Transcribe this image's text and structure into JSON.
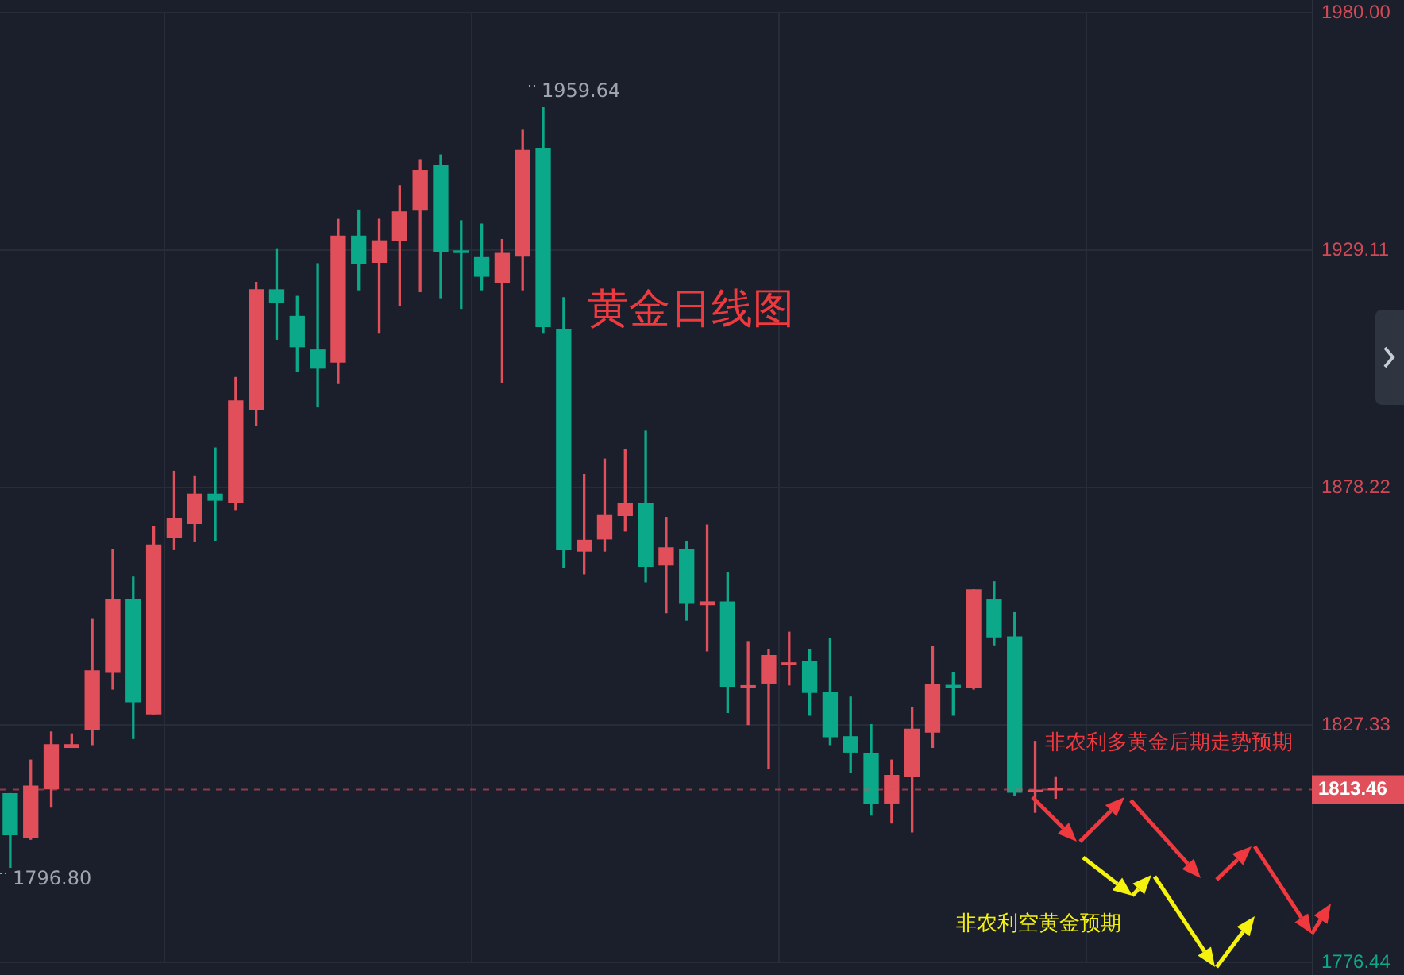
{
  "chart_data": {
    "type": "candlestick",
    "title": "黄金日线图",
    "categories": [
      null,
      null,
      null,
      null,
      null,
      null,
      null,
      null,
      null,
      null,
      null,
      null,
      null,
      null,
      null,
      null,
      null,
      null,
      null,
      null,
      null,
      null,
      null,
      null,
      null,
      null,
      null,
      null,
      null,
      null,
      null,
      null,
      null,
      null,
      null,
      null,
      null,
      null,
      null,
      null,
      null,
      null,
      null,
      null,
      null,
      null,
      null,
      null,
      null,
      null,
      null,
      null,
      null,
      null,
      null,
      null,
      null,
      null,
      null,
      null,
      null,
      null,
      null,
      null
    ],
    "ohlc": [
      [
        1812.6,
        1812.6,
        1796.8,
        1803.8
      ],
      [
        1803.2,
        1819.8,
        1802.8,
        1814.2
      ],
      [
        1813.6,
        1825.8,
        1809.7,
        1823.1
      ],
      [
        1822.5,
        1825.4,
        1822.5,
        1823.1
      ],
      [
        1826.4,
        1850.1,
        1823.1,
        1838.9
      ],
      [
        1838.6,
        1864.9,
        1835.0,
        1854.1
      ],
      [
        1854.1,
        1859.0,
        1824.4,
        1832.3
      ],
      [
        1829.7,
        1869.9,
        1829.7,
        1865.9
      ],
      [
        1867.6,
        1881.7,
        1864.9,
        1871.5
      ],
      [
        1870.5,
        1880.7,
        1866.6,
        1876.8
      ],
      [
        1876.8,
        1886.7,
        1866.9,
        1875.5
      ],
      [
        1875.1,
        1901.8,
        1873.5,
        1896.8
      ],
      [
        1894.9,
        1922.2,
        1891.6,
        1920.6
      ],
      [
        1920.6,
        1929.4,
        1910.0,
        1917.9
      ],
      [
        1914.9,
        1919.2,
        1903.1,
        1908.4
      ],
      [
        1907.7,
        1926.2,
        1895.5,
        1903.8
      ],
      [
        1905.1,
        1935.7,
        1900.5,
        1932.1
      ],
      [
        1932.1,
        1937.7,
        1920.6,
        1926.2
      ],
      [
        1926.5,
        1935.7,
        1911.3,
        1931.1
      ],
      [
        1931.1,
        1942.9,
        1917.3,
        1937.3
      ],
      [
        1937.7,
        1948.5,
        1920.2,
        1946.2
      ],
      [
        1947.2,
        1949.5,
        1918.9,
        1928.8
      ],
      [
        1928.8,
        1935.4,
        1916.6,
        1928.6
      ],
      [
        1927.5,
        1934.7,
        1920.6,
        1923.5
      ],
      [
        1922.2,
        1931.4,
        1900.8,
        1928.4
      ],
      [
        1927.8,
        1954.8,
        1920.6,
        1950.5
      ],
      [
        1950.8,
        1959.64,
        1911.3,
        1912.7
      ],
      [
        1912.0,
        1918.9,
        1861.0,
        1864.9
      ],
      [
        1864.6,
        1881.0,
        1859.7,
        1866.9
      ],
      [
        1867.2,
        1884.3,
        1864.6,
        1872.2
      ],
      [
        1872.2,
        1886.3,
        1868.9,
        1874.8
      ],
      [
        1874.8,
        1890.3,
        1858.0,
        1861.3
      ],
      [
        1861.6,
        1871.8,
        1851.4,
        1865.3
      ],
      [
        1864.9,
        1866.6,
        1849.8,
        1853.4
      ],
      [
        1853.1,
        1870.2,
        1843.2,
        1853.7
      ],
      [
        1853.7,
        1860.0,
        1830.0,
        1835.6
      ],
      [
        1835.4,
        1845.2,
        1827.4,
        1835.6
      ],
      [
        1836.3,
        1843.5,
        1817.9,
        1842.2
      ],
      [
        1840.3,
        1847.2,
        1835.9,
        1840.6
      ],
      [
        1840.9,
        1843.5,
        1829.4,
        1834.3
      ],
      [
        1834.3,
        1845.8,
        1823.1,
        1824.8
      ],
      [
        1824.8,
        1833.3,
        1817.2,
        1821.5
      ],
      [
        1821.1,
        1827.4,
        1808.0,
        1810.6
      ],
      [
        1810.6,
        1819.8,
        1806.3,
        1816.5
      ],
      [
        1816.2,
        1831.0,
        1804.4,
        1826.4
      ],
      [
        1825.8,
        1844.2,
        1822.5,
        1836.0
      ],
      [
        1835.8,
        1838.6,
        1829.4,
        1835.4
      ],
      [
        1835.3,
        1856.3,
        1835.0,
        1856.3
      ],
      [
        1854.1,
        1858.0,
        1844.5,
        1846.2
      ],
      [
        1846.2,
        1851.4,
        1812.3,
        1812.9
      ],
      [
        1813.0,
        1823.8,
        1808.6,
        1813.2
      ],
      [
        1813.4,
        1816.2,
        1811.6,
        1813.46
      ],
      null,
      null,
      null,
      null,
      null,
      null,
      null,
      null,
      null,
      null,
      null,
      null
    ],
    "colors": [
      "#0ca88a",
      "#e04f5a",
      "#e04f5a",
      "#e04f5a",
      "#e04f5a",
      "#e04f5a",
      "#0ca88a",
      "#e04f5a",
      "#e04f5a",
      "#e04f5a",
      "#0ca88a",
      "#e04f5a",
      "#e04f5a",
      "#0ca88a",
      "#0ca88a",
      "#0ca88a",
      "#e04f5a",
      "#0ca88a",
      "#e04f5a",
      "#e04f5a",
      "#e04f5a",
      "#0ca88a",
      "#0ca88a",
      "#0ca88a",
      "#e04f5a",
      "#e04f5a",
      "#0ca88a",
      "#0ca88a",
      "#e04f5a",
      "#e04f5a",
      "#e04f5a",
      "#0ca88a",
      "#e04f5a",
      "#0ca88a",
      "#e04f5a",
      "#0ca88a",
      "#e04f5a",
      "#e04f5a",
      "#e04f5a",
      "#0ca88a",
      "#0ca88a",
      "#0ca88a",
      "#0ca88a",
      "#e04f5a",
      "#e04f5a",
      "#e04f5a",
      "#0ca88a",
      "#e04f5a",
      "#0ca88a",
      "#0ca88a",
      "#e04f5a",
      "#e04f5a",
      null,
      null,
      null,
      null,
      null,
      null,
      null,
      null,
      null,
      null,
      null,
      null
    ],
    "ylim": [
      1776.44,
      1980
    ],
    "yticks": [
      {
        "value": 1980,
        "label": "1980.00"
      },
      1929.11,
      1878.22,
      1827.33,
      1776.44
    ],
    "grid": true,
    "ref_lines": [
      {
        "axis": "y",
        "value": 1813.46,
        "label": "1813.46",
        "color": "#e04f5a",
        "line_style": "dashed"
      }
    ],
    "annotations": [
      "1959.64",
      "1796.80",
      "非农利多黄金后期走势预期",
      "非农利空黄金预期"
    ]
  }
}
